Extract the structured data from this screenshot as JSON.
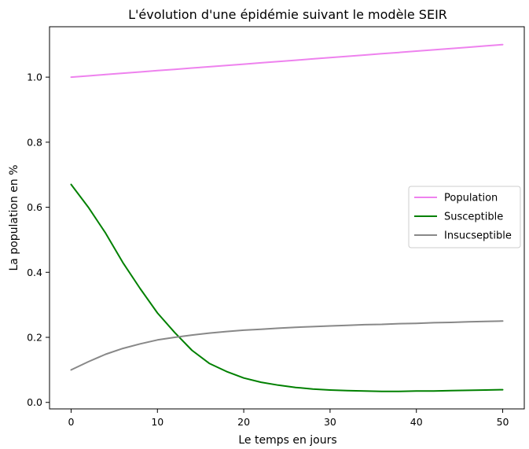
{
  "chart_data": {
    "type": "line",
    "title": "L'évolution d'une épidémie suivant le modèle SEIR",
    "xlabel": "Le temps en jours",
    "ylabel": "La population en %",
    "xlim": [
      -2.5,
      52.5
    ],
    "ylim": [
      -0.02,
      1.155
    ],
    "xticks": [
      0,
      10,
      20,
      30,
      40,
      50
    ],
    "yticks": [
      0.0,
      0.2,
      0.4,
      0.6,
      0.8,
      1.0
    ],
    "xtick_labels": [
      "0",
      "10",
      "20",
      "30",
      "40",
      "50"
    ],
    "ytick_labels": [
      "0.0",
      "0.2",
      "0.4",
      "0.6",
      "0.8",
      "1.0"
    ],
    "grid": false,
    "legend_position": "center-right",
    "x": [
      0,
      2,
      4,
      6,
      8,
      10,
      12,
      14,
      16,
      18,
      20,
      22,
      24,
      26,
      28,
      30,
      32,
      34,
      36,
      38,
      40,
      42,
      44,
      46,
      48,
      50
    ],
    "series": [
      {
        "name": "Population",
        "color": "#ee82ee",
        "values": [
          1.0,
          1.004,
          1.008,
          1.012,
          1.016,
          1.02,
          1.024,
          1.028,
          1.032,
          1.036,
          1.04,
          1.044,
          1.048,
          1.052,
          1.056,
          1.06,
          1.064,
          1.068,
          1.072,
          1.076,
          1.08,
          1.084,
          1.088,
          1.092,
          1.096,
          1.1
        ]
      },
      {
        "name": "Susceptible",
        "color": "#008000",
        "values": [
          0.67,
          0.6,
          0.52,
          0.43,
          0.35,
          0.275,
          0.215,
          0.16,
          0.12,
          0.095,
          0.075,
          0.062,
          0.053,
          0.046,
          0.041,
          0.038,
          0.036,
          0.035,
          0.034,
          0.034,
          0.035,
          0.035,
          0.036,
          0.037,
          0.038,
          0.039
        ]
      },
      {
        "name": "Insucseptible",
        "color": "#888888",
        "values": [
          0.1,
          0.125,
          0.148,
          0.166,
          0.18,
          0.192,
          0.2,
          0.207,
          0.213,
          0.218,
          0.222,
          0.225,
          0.228,
          0.231,
          0.233,
          0.235,
          0.237,
          0.239,
          0.24,
          0.242,
          0.243,
          0.245,
          0.246,
          0.248,
          0.249,
          0.25
        ]
      }
    ]
  }
}
